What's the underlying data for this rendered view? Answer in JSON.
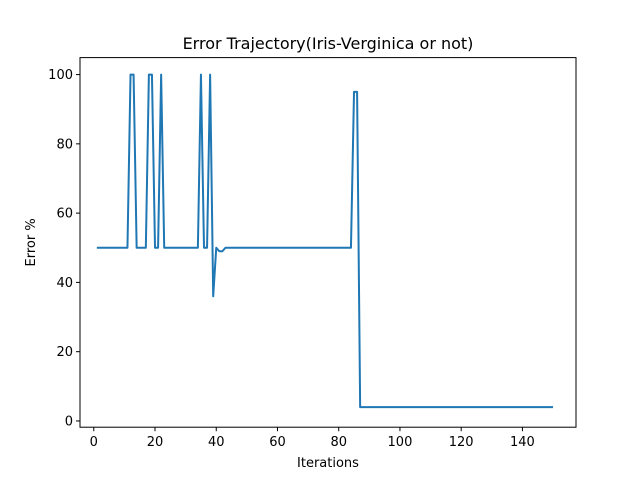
{
  "chart_data": {
    "type": "line",
    "title": "Error Trajectory(Iris-Verginica or not)",
    "xlabel": "Iterations",
    "ylabel": "Error %",
    "xlim": [
      -4.5,
      157.5
    ],
    "ylim": [
      -1.8,
      104.9
    ],
    "xticks": [
      0,
      20,
      40,
      60,
      80,
      100,
      120,
      140
    ],
    "yticks": [
      0,
      20,
      40,
      60,
      80,
      100
    ],
    "grid": false,
    "line_color": "#1f77b4",
    "series": [
      {
        "x": [
          1,
          11,
          12,
          13,
          14,
          15,
          16,
          17,
          18,
          19,
          20,
          21,
          22,
          23,
          34,
          35,
          36,
          37,
          38,
          39,
          40,
          41,
          42,
          43,
          84,
          85,
          86,
          87,
          150
        ],
        "y": [
          50,
          50,
          100,
          100,
          50,
          50,
          50,
          50,
          100,
          100,
          50,
          50,
          100,
          50,
          50,
          100,
          50,
          50,
          100,
          36,
          50,
          49,
          49,
          50,
          50,
          95,
          95,
          4,
          4
        ]
      }
    ]
  }
}
